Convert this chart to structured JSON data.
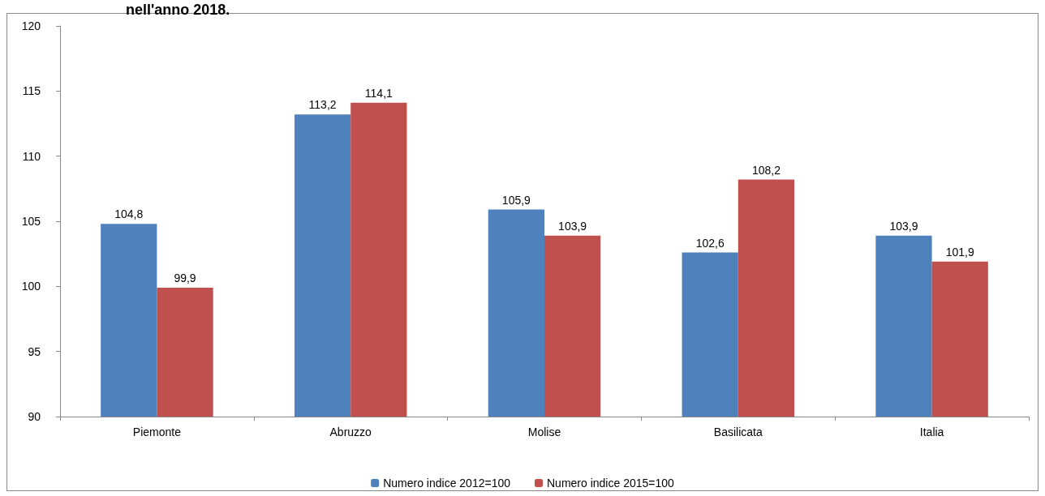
{
  "chart_data": {
    "type": "bar",
    "title": "nell'anno 2018.",
    "categories": [
      "Piemonte",
      "Abruzzo",
      "Molise",
      "Basilicata",
      "Italia"
    ],
    "series": [
      {
        "name": "Numero indice 2012=100",
        "color": "#4f81bd",
        "values": [
          104.8,
          113.2,
          105.9,
          102.6,
          103.9
        ],
        "value_labels": [
          "104,8",
          "113,2",
          "105,9",
          "102,6",
          "103,9"
        ]
      },
      {
        "name": "Numero indice 2015=100",
        "color": "#c0504d",
        "values": [
          99.9,
          114.1,
          103.9,
          108.2,
          101.9
        ],
        "value_labels": [
          "99,9",
          "114,1",
          "103,9",
          "108,2",
          "101,9"
        ]
      }
    ],
    "ylim": [
      90,
      120
    ],
    "yticks": [
      90,
      95,
      100,
      105,
      110,
      115,
      120
    ],
    "grid": false,
    "legend": "bottom"
  }
}
